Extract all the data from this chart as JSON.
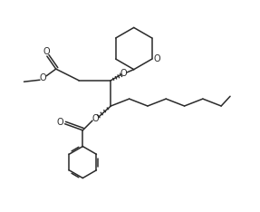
{
  "background": "#ffffff",
  "line_color": "#2a2a2a",
  "line_width": 1.1,
  "figsize": [
    2.87,
    2.34
  ],
  "dpi": 100,
  "xlim": [
    0,
    10
  ],
  "ylim": [
    0,
    8.2
  ]
}
